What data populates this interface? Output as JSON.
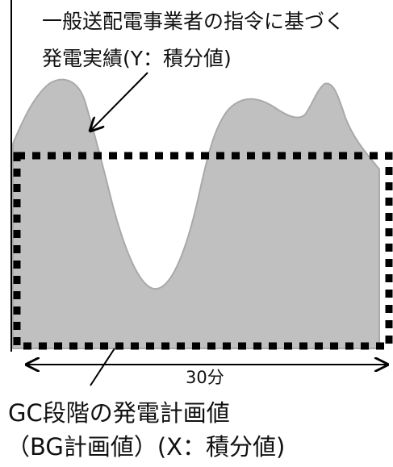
{
  "labels": {
    "actual_line1": "一般送配電事業者の指令に基づく",
    "actual_line2": "発電実績(Y：積分値)",
    "duration": "30分",
    "plan_line1": "GC段階の発電計画値",
    "plan_line2": "（BG計画値）(X：積分値)"
  },
  "colors": {
    "curve_fill": "#c0c0c0",
    "curve_edge": "#a9a9a9",
    "box_dash": "#000000",
    "axis": "#000000",
    "arrow": "#000000",
    "text": "#111111",
    "background": "#ffffff"
  },
  "icons": {
    "annotation_arrow": "arrow-line",
    "duration_arrow": "double-headed-arrow"
  }
}
